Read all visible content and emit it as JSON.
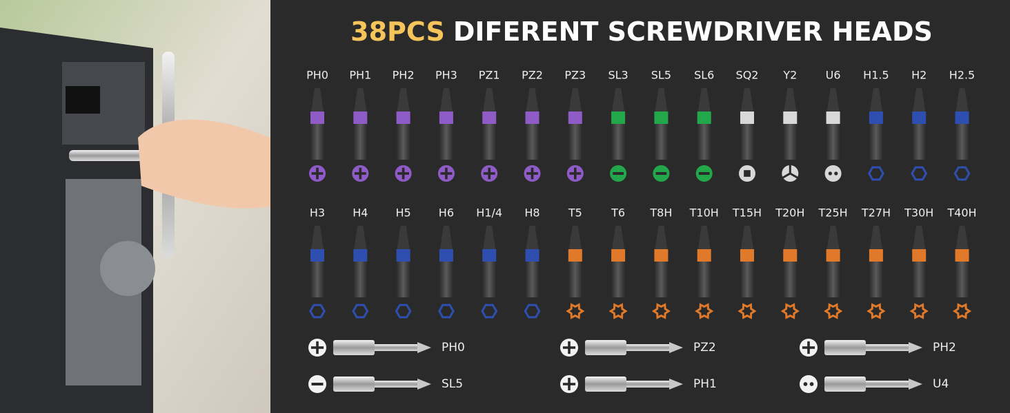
{
  "title": {
    "highlight": "38PCS",
    "rest": "DIFERENT SCREWDRIVER HEADS"
  },
  "rows": [
    {
      "bits": [
        {
          "label": "PH0",
          "color": "#8e5bc7"
        },
        {
          "label": "PH1",
          "color": "#8e5bc7"
        },
        {
          "label": "PH2",
          "color": "#8e5bc7"
        },
        {
          "label": "PH3",
          "color": "#8e5bc7"
        },
        {
          "label": "PZ1",
          "color": "#8e5bc7"
        },
        {
          "label": "PZ2",
          "color": "#8e5bc7"
        },
        {
          "label": "PZ3",
          "color": "#8e5bc7"
        },
        {
          "label": "SL3",
          "color": "#22a84a"
        },
        {
          "label": "SL5",
          "color": "#22a84a"
        },
        {
          "label": "SL6",
          "color": "#22a84a"
        },
        {
          "label": "SQ2",
          "color": "#d8d8d8"
        },
        {
          "label": "Y2",
          "color": "#d8d8d8"
        },
        {
          "label": "U6",
          "color": "#d8d8d8"
        },
        {
          "label": "H1.5",
          "color": "#2f4fb0"
        },
        {
          "label": "H2",
          "color": "#2f4fb0"
        },
        {
          "label": "H2.5",
          "color": "#2f4fb0"
        }
      ]
    },
    {
      "bits": [
        {
          "label": "H3",
          "color": "#2f4fb0"
        },
        {
          "label": "H4",
          "color": "#2f4fb0"
        },
        {
          "label": "H5",
          "color": "#2f4fb0"
        },
        {
          "label": "H6",
          "color": "#2f4fb0"
        },
        {
          "label": "H1/4",
          "color": "#2f4fb0"
        },
        {
          "label": "H8",
          "color": "#2f4fb0"
        },
        {
          "label": "T5",
          "color": "#e07a2a"
        },
        {
          "label": "T6",
          "color": "#e07a2a"
        },
        {
          "label": "T8H",
          "color": "#e07a2a"
        },
        {
          "label": "T10H",
          "color": "#e07a2a"
        },
        {
          "label": "T15H",
          "color": "#e07a2a"
        },
        {
          "label": "T20H",
          "color": "#e07a2a"
        },
        {
          "label": "T25H",
          "color": "#e07a2a"
        },
        {
          "label": "T27H",
          "color": "#e07a2a"
        },
        {
          "label": "T30H",
          "color": "#e07a2a"
        },
        {
          "label": "T40H",
          "color": "#e07a2a"
        }
      ]
    }
  ],
  "long_bits": [
    {
      "label": "PH0"
    },
    {
      "label": "PZ2"
    },
    {
      "label": "PH2"
    },
    {
      "label": "SL5"
    },
    {
      "label": "PH1"
    },
    {
      "label": "U4"
    }
  ]
}
